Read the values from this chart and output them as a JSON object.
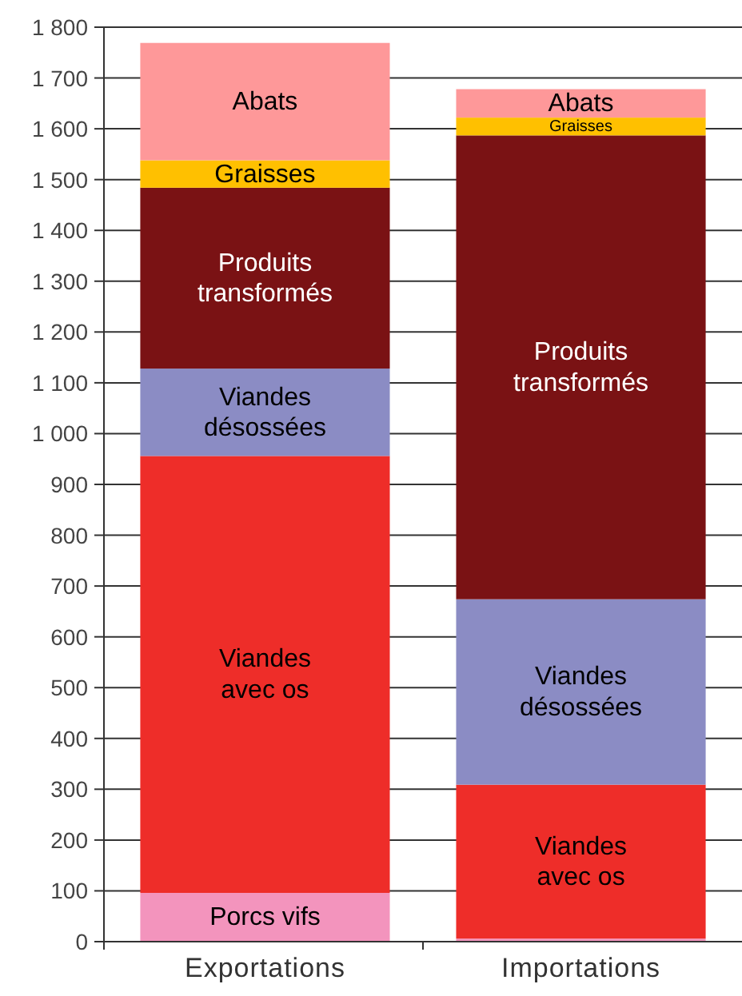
{
  "chart_data": {
    "type": "bar",
    "stacked": true,
    "categories": [
      "Exportations",
      "Importations"
    ],
    "series": [
      {
        "name": "Porcs vifs",
        "color": "#f394bd",
        "values": [
          96,
          6
        ]
      },
      {
        "name": "Viandes avec os",
        "color": "#ee2d29",
        "values": [
          860,
          303
        ]
      },
      {
        "name": "Viandes désossées",
        "color": "#8b8cc4",
        "values": [
          172,
          365
        ]
      },
      {
        "name": "Produits transformés",
        "color": "#7a1214",
        "values": [
          356,
          913
        ]
      },
      {
        "name": "Graisses",
        "color": "#ffc000",
        "values": [
          54,
          35
        ]
      },
      {
        "name": "Abats",
        "color": "#fe9899",
        "values": [
          231,
          56
        ]
      }
    ],
    "ylim": [
      0,
      1800
    ],
    "yticks": [
      0,
      100,
      200,
      300,
      400,
      500,
      600,
      700,
      800,
      900,
      {
        "value": 1000,
        "label": "1 000"
      },
      {
        "value": 1100,
        "label": "1 100"
      },
      {
        "value": 1200,
        "label": "1 200"
      },
      {
        "value": 1300,
        "label": "1 300"
      },
      {
        "value": 1400,
        "label": "1 400"
      },
      {
        "value": 1500,
        "label": "1 500"
      },
      {
        "value": 1600,
        "label": "1 600"
      },
      {
        "value": 1700,
        "label": "1 700"
      },
      {
        "value": 1800,
        "label": "1 800"
      }
    ],
    "grid": "y"
  }
}
